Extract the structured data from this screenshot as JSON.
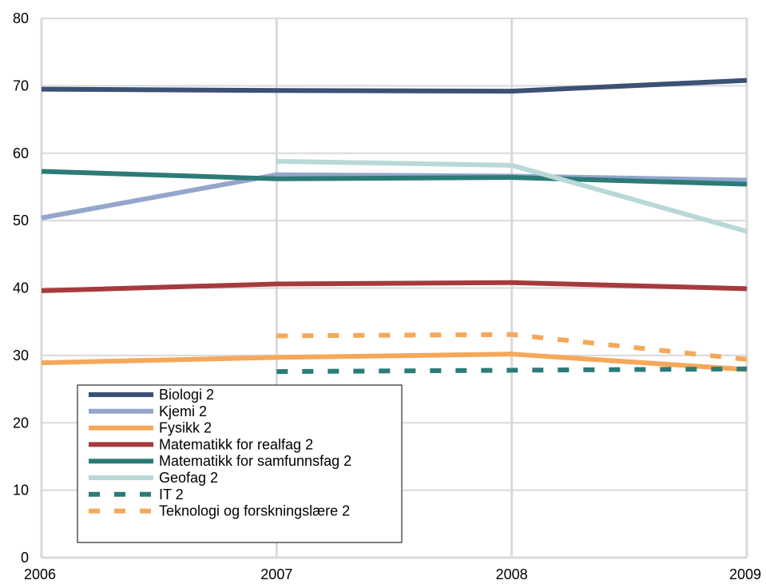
{
  "chart_data": {
    "type": "line",
    "title": "",
    "xlabel": "",
    "ylabel": "",
    "x": [
      2006,
      2007,
      2008,
      2009
    ],
    "xlim": [
      2006,
      2009
    ],
    "ylim": [
      0,
      80
    ],
    "yticks": [
      0,
      10,
      20,
      30,
      40,
      50,
      60,
      70,
      80
    ],
    "grid": true,
    "legend": "bottom-left",
    "series": [
      {
        "name": "Biologi 2",
        "color": "#3d5076",
        "dashed": false,
        "values": [
          69.5,
          69.3,
          69.2,
          70.8
        ]
      },
      {
        "name": "Kjemi 2",
        "color": "#94a6cc",
        "dashed": false,
        "values": [
          50.4,
          56.8,
          56.6,
          56.0
        ]
      },
      {
        "name": "Fysikk 2",
        "color": "#f5a85a",
        "dashed": false,
        "values": [
          28.9,
          29.7,
          30.2,
          27.9
        ]
      },
      {
        "name": "Matematikk for realfag 2",
        "color": "#a63a3c",
        "dashed": false,
        "values": [
          39.6,
          40.6,
          40.8,
          39.9
        ]
      },
      {
        "name": "Matematikk for samfunnsfag 2",
        "color": "#2c7b78",
        "dashed": false,
        "values": [
          57.3,
          56.2,
          56.4,
          55.4
        ]
      },
      {
        "name": "Geofag 2",
        "color": "#b9d8d8",
        "dashed": false,
        "values": [
          null,
          58.8,
          58.2,
          48.4
        ]
      },
      {
        "name": "IT 2",
        "color": "#2c7b78",
        "dashed": true,
        "values": [
          null,
          27.6,
          27.8,
          28.0
        ]
      },
      {
        "name": "Teknologi og forskningslære 2",
        "color": "#f5a85a",
        "dashed": true,
        "values": [
          null,
          32.9,
          33.1,
          29.4
        ]
      }
    ]
  }
}
